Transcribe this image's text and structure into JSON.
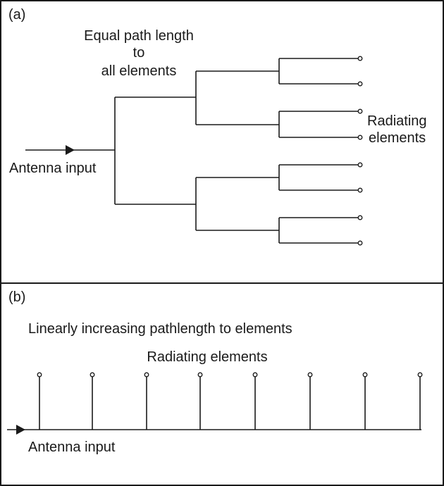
{
  "panel_a": {
    "tag": "(a)",
    "heading_lines": [
      "Equal path length",
      "to",
      "all elements"
    ],
    "input_label": "Antenna input",
    "output_label_lines": [
      "Radiating",
      "elements"
    ],
    "element_count": 8
  },
  "panel_b": {
    "tag": "(b)",
    "heading": "Linearly increasing pathlength to elements",
    "elements_label": "Radiating elements",
    "input_label": "Antenna input",
    "element_count": 8
  }
}
